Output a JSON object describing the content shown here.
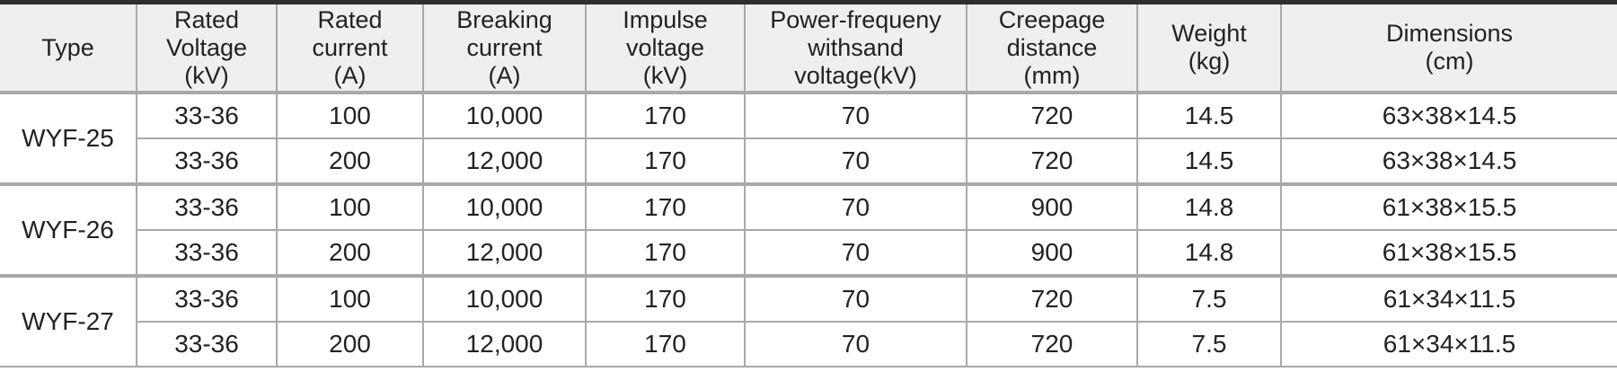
{
  "table": {
    "headers": [
      [
        "Type"
      ],
      [
        "Rated",
        "Voltage",
        "(kV)"
      ],
      [
        "Rated",
        "current",
        "(A)"
      ],
      [
        "Breaking",
        "current",
        "(A)"
      ],
      [
        "Impulse",
        "voltage",
        "(kV)"
      ],
      [
        "Power-frequeny",
        "withsand",
        "voltage(kV)"
      ],
      [
        "Creepage",
        "distance",
        "(mm)"
      ],
      [
        "Weight",
        "(kg)"
      ],
      [
        "Dimensions",
        "(cm)"
      ]
    ],
    "groups": [
      {
        "type": "WYF-25",
        "rows": [
          [
            "33-36",
            "100",
            "10,000",
            "170",
            "70",
            "720",
            "14.5",
            "63×38×14.5"
          ],
          [
            "33-36",
            "200",
            "12,000",
            "170",
            "70",
            "720",
            "14.5",
            "63×38×14.5"
          ]
        ]
      },
      {
        "type": "WYF-26",
        "rows": [
          [
            "33-36",
            "100",
            "10,000",
            "170",
            "70",
            "900",
            "14.8",
            "61×38×15.5"
          ],
          [
            "33-36",
            "200",
            "12,000",
            "170",
            "70",
            "900",
            "14.8",
            "61×38×15.5"
          ]
        ]
      },
      {
        "type": "WYF-27",
        "rows": [
          [
            "33-36",
            "100",
            "10,000",
            "170",
            "70",
            "720",
            "7.5",
            "61×34×11.5"
          ],
          [
            "33-36",
            "200",
            "12,000",
            "170",
            "70",
            "720",
            "7.5",
            "61×34×11.5"
          ]
        ]
      }
    ]
  }
}
